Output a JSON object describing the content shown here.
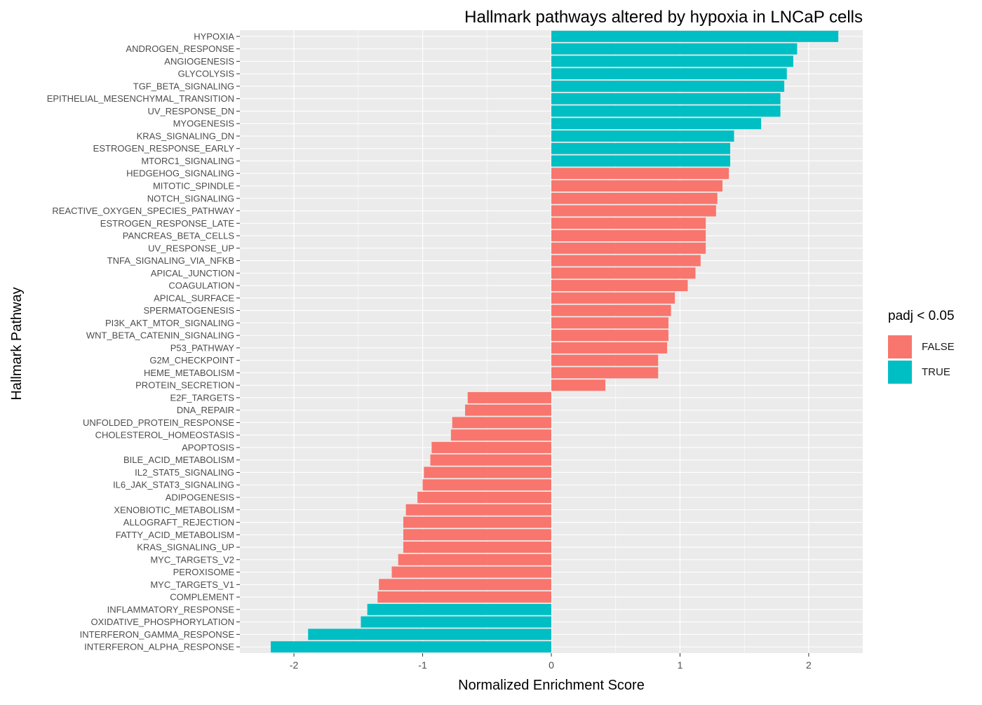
{
  "chart_data": {
    "type": "bar",
    "orientation": "horizontal",
    "title": "Hallmark pathways altered by hypoxia in LNCaP cells",
    "xlabel": "Normalized Enrichment Score",
    "ylabel": "Hallmark Pathway",
    "xlim": [
      -2.42,
      2.42
    ],
    "x_ticks": [
      -2,
      -1,
      0,
      1,
      2
    ],
    "x_tick_labels": [
      "-2",
      "-1",
      "0",
      "1",
      "2"
    ],
    "grid": true,
    "legend": {
      "title": "padj < 0.05",
      "position": "right",
      "entries": [
        {
          "label": "FALSE",
          "color": "#F8766D"
        },
        {
          "label": "TRUE",
          "color": "#00BFC4"
        }
      ]
    },
    "colors": {
      "FALSE": "#F8766D",
      "TRUE": "#00BFC4",
      "panel": "#EBEBEB",
      "grid": "#FFFFFF"
    },
    "categories": [
      "HYPOXIA",
      "ANDROGEN_RESPONSE",
      "ANGIOGENESIS",
      "GLYCOLYSIS",
      "TGF_BETA_SIGNALING",
      "EPITHELIAL_MESENCHYMAL_TRANSITION",
      "UV_RESPONSE_DN",
      "MYOGENESIS",
      "KRAS_SIGNALING_DN",
      "ESTROGEN_RESPONSE_EARLY",
      "MTORC1_SIGNALING",
      "HEDGEHOG_SIGNALING",
      "MITOTIC_SPINDLE",
      "NOTCH_SIGNALING",
      "REACTIVE_OXYGEN_SPECIES_PATHWAY",
      "ESTROGEN_RESPONSE_LATE",
      "PANCREAS_BETA_CELLS",
      "UV_RESPONSE_UP",
      "TNFA_SIGNALING_VIA_NFKB",
      "APICAL_JUNCTION",
      "COAGULATION",
      "APICAL_SURFACE",
      "SPERMATOGENESIS",
      "PI3K_AKT_MTOR_SIGNALING",
      "WNT_BETA_CATENIN_SIGNALING",
      "P53_PATHWAY",
      "G2M_CHECKPOINT",
      "HEME_METABOLISM",
      "PROTEIN_SECRETION",
      "E2F_TARGETS",
      "DNA_REPAIR",
      "UNFOLDED_PROTEIN_RESPONSE",
      "CHOLESTEROL_HOMEOSTASIS",
      "APOPTOSIS",
      "BILE_ACID_METABOLISM",
      "IL2_STAT5_SIGNALING",
      "IL6_JAK_STAT3_SIGNALING",
      "ADIPOGENESIS",
      "XENOBIOTIC_METABOLISM",
      "ALLOGRAFT_REJECTION",
      "FATTY_ACID_METABOLISM",
      "KRAS_SIGNALING_UP",
      "MYC_TARGETS_V2",
      "PEROXISOME",
      "MYC_TARGETS_V1",
      "COMPLEMENT",
      "INFLAMMATORY_RESPONSE",
      "OXIDATIVE_PHOSPHORYLATION",
      "INTERFERON_GAMMA_RESPONSE",
      "INTERFERON_ALPHA_RESPONSE"
    ],
    "values": [
      2.23,
      1.91,
      1.88,
      1.83,
      1.81,
      1.78,
      1.78,
      1.63,
      1.42,
      1.39,
      1.39,
      1.38,
      1.33,
      1.29,
      1.28,
      1.2,
      1.2,
      1.2,
      1.16,
      1.12,
      1.06,
      0.96,
      0.93,
      0.91,
      0.91,
      0.9,
      0.83,
      0.83,
      0.42,
      -0.65,
      -0.67,
      -0.77,
      -0.78,
      -0.93,
      -0.94,
      -0.99,
      -1.0,
      -1.04,
      -1.13,
      -1.15,
      -1.15,
      -1.15,
      -1.19,
      -1.24,
      -1.34,
      -1.35,
      -1.43,
      -1.48,
      -1.89,
      -2.18
    ],
    "significant": [
      true,
      true,
      true,
      true,
      true,
      true,
      true,
      true,
      true,
      true,
      true,
      false,
      false,
      false,
      false,
      false,
      false,
      false,
      false,
      false,
      false,
      false,
      false,
      false,
      false,
      false,
      false,
      false,
      false,
      false,
      false,
      false,
      false,
      false,
      false,
      false,
      false,
      false,
      false,
      false,
      false,
      false,
      false,
      false,
      false,
      false,
      true,
      true,
      true,
      true
    ]
  }
}
